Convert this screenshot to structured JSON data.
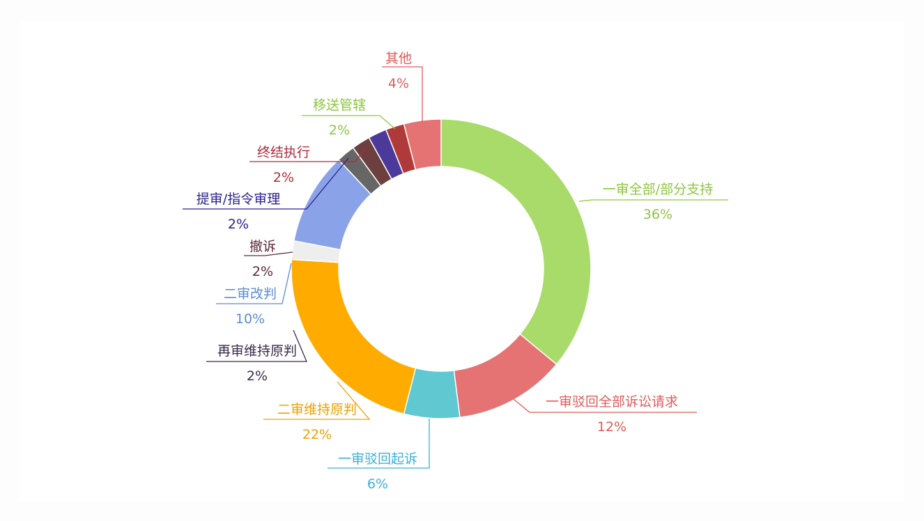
{
  "chart_data": {
    "type": "donut",
    "slices": [
      {
        "name": "一审全部/部分支持",
        "pct_label": "36%",
        "value": 36,
        "color": "#a8db6a"
      },
      {
        "name": "一审驳回全部诉讼请求",
        "pct_label": "12%",
        "value": 12,
        "color": "#e57373"
      },
      {
        "name": "一审驳回起诉",
        "pct_label": "6%",
        "value": 6,
        "color": "#5fc8d1"
      },
      {
        "name": "二审维持原判",
        "pct_label": "22%",
        "value": 22,
        "color": "#ffab00"
      },
      {
        "name": "再审维持原判",
        "pct_label": "2%",
        "value": 2,
        "color": "#eeeeee"
      },
      {
        "name": "二审改判",
        "pct_label": "10%",
        "value": 10,
        "color": "#8aa3e8"
      },
      {
        "name": "撤诉",
        "pct_label": "2%",
        "value": 2,
        "color": "#666666"
      },
      {
        "name": "提审/指令审理",
        "pct_label": "2%",
        "value": 2,
        "color": "#6d3f3f"
      },
      {
        "name": "终结执行",
        "pct_label": "2%",
        "value": 2,
        "color": "#4b3a9a"
      },
      {
        "name": "移送管辖",
        "pct_label": "2%",
        "value": 2,
        "color": "#b03a3a"
      },
      {
        "name": "其他",
        "pct_label": "4%",
        "value": 4,
        "color": "#e57373"
      }
    ],
    "label_colors": [
      "#8cc63f",
      "#e05a5a",
      "#3ab0d8",
      "#f0a000",
      "#3a2a4a",
      "#5b8ad8",
      "#5a2a3a",
      "#2a2090",
      "#b02a3a",
      "#8cc63f",
      "#e05a5a"
    ]
  }
}
